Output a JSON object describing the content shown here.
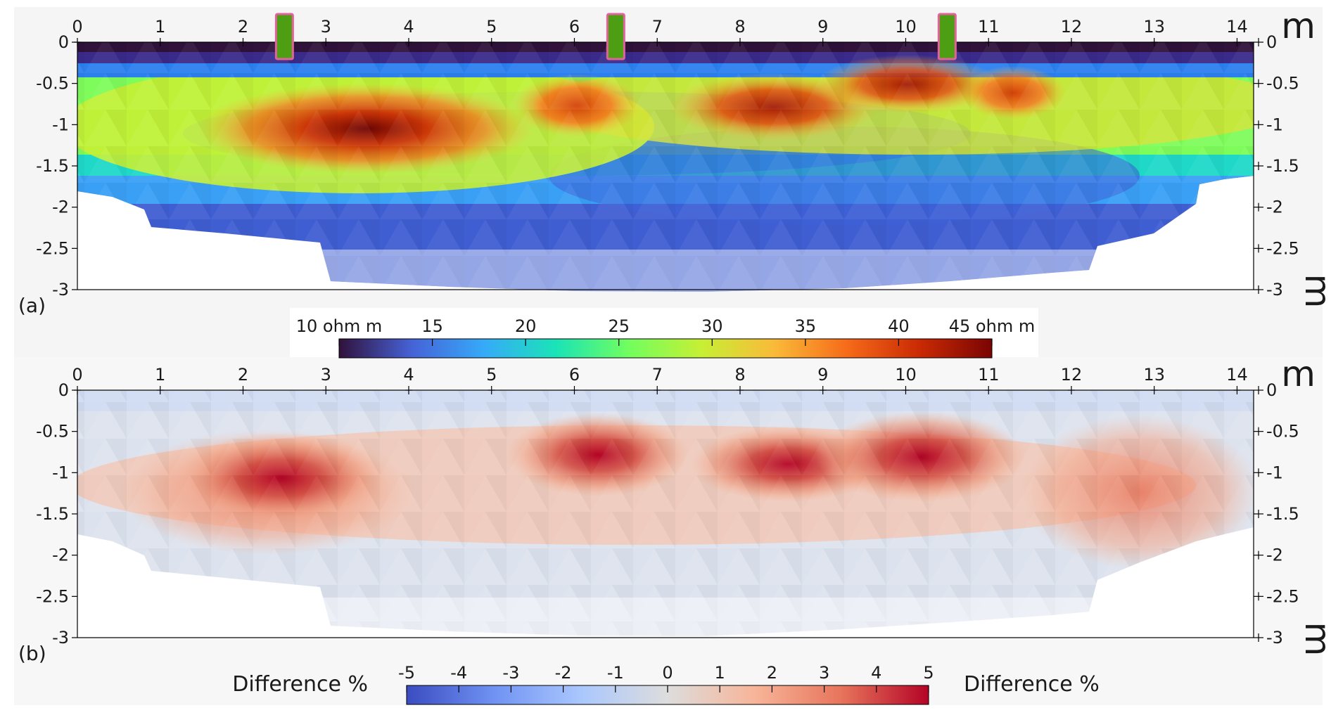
{
  "chart_data": [
    {
      "panel_label": "(a)",
      "type": "heatmap",
      "x_unit": "m",
      "y_unit": "m",
      "xlim": [
        0,
        14.2
      ],
      "ylim": [
        -3,
        0
      ],
      "x_ticks": [
        "0",
        "1",
        "2",
        "3",
        "4",
        "5",
        "6",
        "7",
        "8",
        "9",
        "10",
        "11",
        "12",
        "13",
        "14"
      ],
      "y_ticks": [
        "0",
        "-0.5",
        "-1",
        "-1.5",
        "-2",
        "-2.5",
        "-3"
      ],
      "colorbar": {
        "colormap": "turbo",
        "range": [
          10,
          45
        ],
        "ticks": [
          "10 ohm m",
          "15",
          "20",
          "25",
          "30",
          "35",
          "40",
          "45 ohm m"
        ],
        "colors": [
          "#30123b",
          "#4662d7",
          "#36aaf9",
          "#1ae4b6",
          "#72fe5e",
          "#c7ef34",
          "#faba39",
          "#f66b19",
          "#ca2a04",
          "#7a0403"
        ]
      },
      "markers": [
        {
          "type": "electrode",
          "x": 2.5,
          "color_fill": "#4d9e12",
          "color_edge": "#e0649a"
        },
        {
          "type": "electrode",
          "x": 6.5,
          "color_fill": "#4d9e12",
          "color_edge": "#e0649a"
        },
        {
          "type": "electrode",
          "x": 10.5,
          "color_fill": "#4d9e12",
          "color_edge": "#e0649a"
        }
      ],
      "anomalies_ohm_m": [
        {
          "x": 3.6,
          "depth": -1.1,
          "value": 45
        },
        {
          "x": 6.1,
          "depth": -0.75,
          "value": 38
        },
        {
          "x": 8.6,
          "depth": -0.8,
          "value": 40
        },
        {
          "x": 10.1,
          "depth": -0.55,
          "value": 42
        },
        {
          "x": 11.3,
          "depth": -0.65,
          "value": 38
        }
      ]
    },
    {
      "panel_label": "(b)",
      "type": "heatmap",
      "x_unit": "m",
      "y_unit": "m",
      "xlim": [
        0,
        14.2
      ],
      "ylim": [
        -3,
        0
      ],
      "x_ticks": [
        "0",
        "1",
        "2",
        "3",
        "4",
        "5",
        "6",
        "7",
        "8",
        "9",
        "10",
        "11",
        "12",
        "13",
        "14"
      ],
      "y_ticks": [
        "0",
        "-0.5",
        "-1",
        "-1.5",
        "-2",
        "-2.5",
        "-3"
      ],
      "colorbar": {
        "colormap": "coolwarm",
        "range": [
          -5,
          5
        ],
        "ticks": [
          "-5",
          "-4",
          "-3",
          "-2",
          "-1",
          "0",
          "1",
          "2",
          "3",
          "4",
          "5"
        ],
        "label_left": "Difference %",
        "label_right": "Difference %",
        "colors": [
          "#3b4cc0",
          "#6f92f3",
          "#aac7fd",
          "#dddddd",
          "#f7b599",
          "#e7745b",
          "#b40426"
        ]
      },
      "anomalies_percent": [
        {
          "x": 2.7,
          "depth": -1.0,
          "value": 5
        },
        {
          "x": 6.4,
          "depth": -0.8,
          "value": 4.5
        },
        {
          "x": 8.6,
          "depth": -0.9,
          "value": 3.5
        },
        {
          "x": 10.3,
          "depth": -0.75,
          "value": 5
        },
        {
          "x": 12.8,
          "depth": -1.1,
          "value": 3
        }
      ]
    }
  ]
}
